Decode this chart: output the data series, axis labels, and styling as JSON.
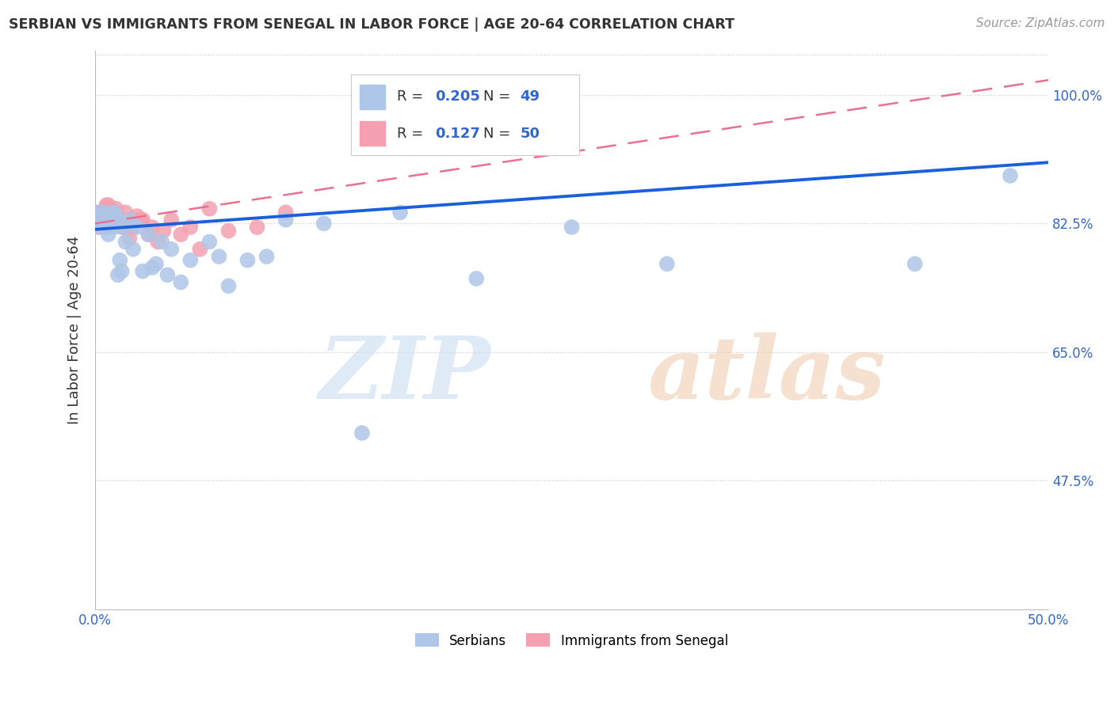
{
  "title": "SERBIAN VS IMMIGRANTS FROM SENEGAL IN LABOR FORCE | AGE 20-64 CORRELATION CHART",
  "source": "Source: ZipAtlas.com",
  "xlabel": "",
  "ylabel": "In Labor Force | Age 20-64",
  "xlim": [
    0.0,
    0.5
  ],
  "ylim": [
    0.3,
    1.06
  ],
  "yticks": [
    0.475,
    0.65,
    0.825,
    1.0
  ],
  "ytick_labels": [
    "47.5%",
    "65.0%",
    "82.5%",
    "100.0%"
  ],
  "serbian_color": "#aec6e8",
  "senegal_color": "#f4a0b0",
  "serbian_line_color": "#1a5fdb",
  "senegal_line_color": "#e87090",
  "legend_R1": "0.205",
  "legend_N1": "49",
  "legend_R2": "0.127",
  "legend_N2": "50",
  "serbian_x": [
    0.001,
    0.002,
    0.002,
    0.003,
    0.003,
    0.004,
    0.005,
    0.005,
    0.006,
    0.006,
    0.007,
    0.007,
    0.008,
    0.008,
    0.009,
    0.01,
    0.01,
    0.011,
    0.012,
    0.013,
    0.014,
    0.015,
    0.016,
    0.018,
    0.02,
    0.022,
    0.025,
    0.028,
    0.03,
    0.032,
    0.035,
    0.038,
    0.04,
    0.045,
    0.05,
    0.06,
    0.065,
    0.07,
    0.08,
    0.09,
    0.1,
    0.12,
    0.14,
    0.16,
    0.2,
    0.25,
    0.3,
    0.43,
    0.48
  ],
  "serbian_y": [
    0.825,
    0.83,
    0.84,
    0.82,
    0.825,
    0.83,
    0.825,
    0.84,
    0.82,
    0.83,
    0.81,
    0.835,
    0.825,
    0.835,
    0.83,
    0.82,
    0.84,
    0.835,
    0.755,
    0.775,
    0.76,
    0.82,
    0.8,
    0.83,
    0.79,
    0.82,
    0.76,
    0.81,
    0.765,
    0.77,
    0.8,
    0.755,
    0.79,
    0.745,
    0.775,
    0.8,
    0.78,
    0.74,
    0.775,
    0.78,
    0.83,
    0.825,
    0.54,
    0.84,
    0.75,
    0.82,
    0.77,
    0.77,
    0.89
  ],
  "senegal_x": [
    0.001,
    0.001,
    0.002,
    0.002,
    0.003,
    0.003,
    0.004,
    0.004,
    0.005,
    0.005,
    0.005,
    0.006,
    0.006,
    0.006,
    0.007,
    0.007,
    0.007,
    0.008,
    0.008,
    0.008,
    0.009,
    0.009,
    0.01,
    0.01,
    0.011,
    0.011,
    0.012,
    0.013,
    0.014,
    0.015,
    0.016,
    0.017,
    0.018,
    0.019,
    0.02,
    0.022,
    0.024,
    0.025,
    0.028,
    0.03,
    0.033,
    0.036,
    0.04,
    0.045,
    0.05,
    0.055,
    0.06,
    0.07,
    0.085,
    0.1
  ],
  "senegal_y": [
    0.835,
    0.84,
    0.82,
    0.835,
    0.825,
    0.84,
    0.83,
    0.825,
    0.835,
    0.84,
    0.83,
    0.85,
    0.82,
    0.83,
    0.84,
    0.85,
    0.83,
    0.835,
    0.84,
    0.845,
    0.83,
    0.835,
    0.84,
    0.83,
    0.845,
    0.835,
    0.83,
    0.825,
    0.82,
    0.83,
    0.84,
    0.825,
    0.805,
    0.83,
    0.82,
    0.835,
    0.83,
    0.83,
    0.81,
    0.82,
    0.8,
    0.815,
    0.83,
    0.81,
    0.82,
    0.79,
    0.845,
    0.815,
    0.82,
    0.84
  ],
  "trend_serbian_x0": 0.0,
  "trend_serbian_y0": 0.817,
  "trend_serbian_x1": 0.5,
  "trend_serbian_y1": 0.908,
  "trend_senegal_x0": 0.0,
  "trend_senegal_y0": 0.825,
  "trend_senegal_x1": 0.5,
  "trend_senegal_y1": 1.02
}
